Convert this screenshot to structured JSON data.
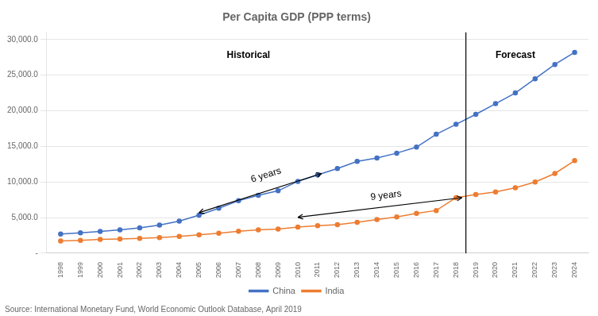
{
  "chart_data": {
    "type": "line",
    "title": "Per Capita GDP (PPP terms)",
    "subtitle": "Source: International Monetary Fund, World Economic Outlook Database, April 2019",
    "x": [
      1998,
      1999,
      2000,
      2001,
      2002,
      2003,
      2004,
      2005,
      2006,
      2007,
      2008,
      2009,
      2010,
      2011,
      2012,
      2013,
      2014,
      2015,
      2016,
      2017,
      2018,
      2019,
      2020,
      2021,
      2022,
      2023,
      2024
    ],
    "series": [
      {
        "name": "China",
        "color": "#4472C4",
        "marker": "circle",
        "values": [
          2690,
          2860,
          3060,
          3290,
          3570,
          3950,
          4520,
          5340,
          6320,
          7370,
          8130,
          8765,
          10090,
          11000,
          11900,
          12890,
          13380,
          14050,
          14900,
          16700,
          18100,
          19500,
          21000,
          22500,
          24500,
          26500,
          28200
        ]
      },
      {
        "name": "India",
        "color": "#ED7D31",
        "marker": "circle",
        "values": [
          1730,
          1820,
          1940,
          2000,
          2090,
          2210,
          2370,
          2600,
          2820,
          3080,
          3280,
          3390,
          3680,
          3880,
          4000,
          4350,
          4740,
          5100,
          5600,
          6000,
          7800,
          8250,
          8600,
          9200,
          10000,
          11200,
          13000
        ]
      }
    ],
    "xlim": [
      1997.3,
      2024.7
    ],
    "xticks": [
      1998,
      1999,
      2000,
      2001,
      2002,
      2003,
      2004,
      2005,
      2006,
      2007,
      2008,
      2009,
      2010,
      2011,
      2012,
      2013,
      2014,
      2015,
      2016,
      2017,
      2018,
      2019,
      2020,
      2021,
      2022,
      2023,
      2024
    ],
    "ylim": [
      0,
      31000
    ],
    "yticks": [
      {
        "value": 0,
        "label": "-"
      },
      {
        "value": 5000,
        "label": "5,000.0"
      },
      {
        "value": 10000,
        "label": "10,000.0"
      },
      {
        "value": 15000,
        "label": "15,000.0"
      },
      {
        "value": 20000,
        "label": "20,000.0"
      },
      {
        "value": 25000,
        "label": "25,000.0"
      },
      {
        "value": 30000,
        "label": "30,000.0"
      }
    ],
    "grid": "y",
    "legend": "bottom",
    "annotations": [
      {
        "type": "vline",
        "x": 2018.5
      },
      {
        "type": "text",
        "text": "Historical",
        "x": 2007.5,
        "y": 28500
      },
      {
        "type": "text",
        "text": "Forecast",
        "x": 2021,
        "y": 28500
      },
      {
        "type": "arrow",
        "text": "6 years",
        "x": 2008.5,
        "y": 10000,
        "from": [
          2005.0,
          5700
        ],
        "to": [
          2011.2,
          11200
        ]
      },
      {
        "type": "arrow",
        "text": "9 years",
        "x": 2014.5,
        "y": 7100,
        "from": [
          2010.0,
          5050
        ],
        "to": [
          2018.3,
          7800
        ]
      }
    ]
  }
}
